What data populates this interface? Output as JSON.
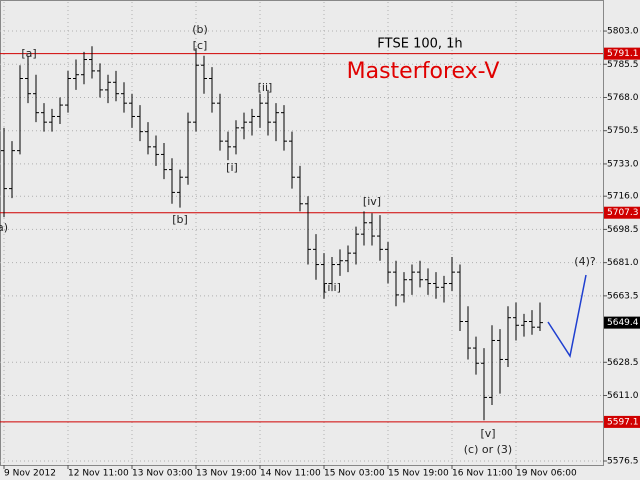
{
  "chart_data": {
    "type": "ohlc",
    "title": "FTSE 100, 1h",
    "subtitle": "Masterforex-V",
    "categories": [
      "9 Nov 2012",
      null,
      null,
      null,
      null,
      null,
      null,
      null,
      "12 Nov 11:00",
      null,
      null,
      null,
      null,
      null,
      null,
      null,
      "13 Nov 03:00",
      null,
      null,
      null,
      null,
      null,
      null,
      null,
      "13 Nov 19:00",
      null,
      null,
      null,
      null,
      null,
      null,
      null,
      "14 Nov 11:00",
      null,
      null,
      null,
      null,
      null,
      null,
      null,
      "15 Nov 03:00",
      null,
      null,
      null,
      null,
      null,
      null,
      null,
      "15 Nov 19:00",
      null,
      null,
      null,
      null,
      null,
      null,
      null,
      "16 Nov 11:00",
      null,
      null,
      null,
      null,
      null,
      null,
      null,
      "19 Nov 06:00",
      null,
      null,
      null
    ],
    "open": [
      5740,
      5720,
      5740,
      5778,
      5770,
      5760,
      5755,
      5758,
      5764,
      5778,
      5780,
      5788,
      5782,
      5772,
      5776,
      5770,
      5765,
      5758,
      5750,
      5742,
      5738,
      5730,
      5718,
      5726,
      5755,
      5785,
      5778,
      5765,
      5745,
      5742,
      5752,
      5755,
      5758,
      5765,
      5755,
      5760,
      5745,
      5726,
      5712,
      5688,
      5680,
      5670,
      5680,
      5682,
      5686,
      5696,
      5702,
      5695,
      5688,
      5676,
      5664,
      5672,
      5676,
      5672,
      5670,
      5668,
      5670,
      5676,
      5650,
      5636,
      5628,
      5610,
      5640,
      5630,
      5652,
      5648,
      5650,
      5647
    ],
    "high": [
      5752,
      5745,
      5785,
      5790,
      5780,
      5765,
      5762,
      5768,
      5782,
      5788,
      5792,
      5795,
      5786,
      5780,
      5782,
      5776,
      5770,
      5764,
      5755,
      5748,
      5744,
      5736,
      5730,
      5760,
      5794,
      5790,
      5784,
      5770,
      5750,
      5756,
      5760,
      5762,
      5770,
      5772,
      5765,
      5764,
      5750,
      5732,
      5716,
      5696,
      5686,
      5684,
      5688,
      5690,
      5700,
      5708,
      5707,
      5706,
      5692,
      5682,
      5676,
      5680,
      5682,
      5678,
      5676,
      5674,
      5684,
      5680,
      5658,
      5642,
      5636,
      5648,
      5646,
      5658,
      5660,
      5654,
      5656,
      5660
    ],
    "low": [
      5705,
      5715,
      5738,
      5765,
      5755,
      5750,
      5750,
      5754,
      5760,
      5772,
      5775,
      5778,
      5768,
      5765,
      5766,
      5760,
      5752,
      5745,
      5738,
      5732,
      5725,
      5712,
      5710,
      5722,
      5750,
      5770,
      5760,
      5740,
      5735,
      5738,
      5746,
      5748,
      5752,
      5748,
      5745,
      5740,
      5720,
      5708,
      5680,
      5672,
      5662,
      5666,
      5674,
      5676,
      5680,
      5690,
      5690,
      5682,
      5670,
      5658,
      5660,
      5664,
      5668,
      5664,
      5662,
      5660,
      5666,
      5645,
      5630,
      5622,
      5598,
      5606,
      5612,
      5626,
      5640,
      5642,
      5643,
      5645
    ],
    "close": [
      5720,
      5740,
      5778,
      5770,
      5760,
      5755,
      5758,
      5764,
      5778,
      5780,
      5788,
      5782,
      5772,
      5776,
      5770,
      5765,
      5758,
      5750,
      5742,
      5738,
      5730,
      5718,
      5726,
      5755,
      5785,
      5778,
      5765,
      5745,
      5742,
      5752,
      5755,
      5758,
      5765,
      5755,
      5760,
      5745,
      5726,
      5712,
      5688,
      5680,
      5670,
      5680,
      5682,
      5686,
      5696,
      5702,
      5695,
      5688,
      5676,
      5664,
      5672,
      5676,
      5672,
      5670,
      5668,
      5670,
      5676,
      5650,
      5636,
      5628,
      5610,
      5640,
      5630,
      5652,
      5648,
      5650,
      5647,
      5649.4
    ],
    "color": "#000000",
    "ylim": [
      5574.4,
      5818.3
    ],
    "yticks": [
      {
        "value": 5803,
        "label": "5803.0"
      },
      5785.5,
      {
        "value": 5768,
        "label": "5768.0"
      },
      5750.5,
      {
        "value": 5733,
        "label": "5733.0"
      },
      {
        "value": 5716,
        "label": "5716.0"
      },
      5698.5,
      {
        "value": 5681,
        "label": "5681.0"
      },
      5663.5,
      5628.5,
      {
        "value": 5611,
        "label": "5611.0"
      },
      5576.5
    ],
    "levels": [
      5791.1,
      5707.3,
      5597.1
    ],
    "level_color": "#d00000",
    "grid": true,
    "annotations": [
      "[a]",
      "(b)",
      "[c]",
      "[ii]",
      "[i]",
      "[b]",
      "[iv]",
      "[iii]",
      "(4)?",
      "[v]",
      "(c) or (3)",
      "a)"
    ]
  }
}
